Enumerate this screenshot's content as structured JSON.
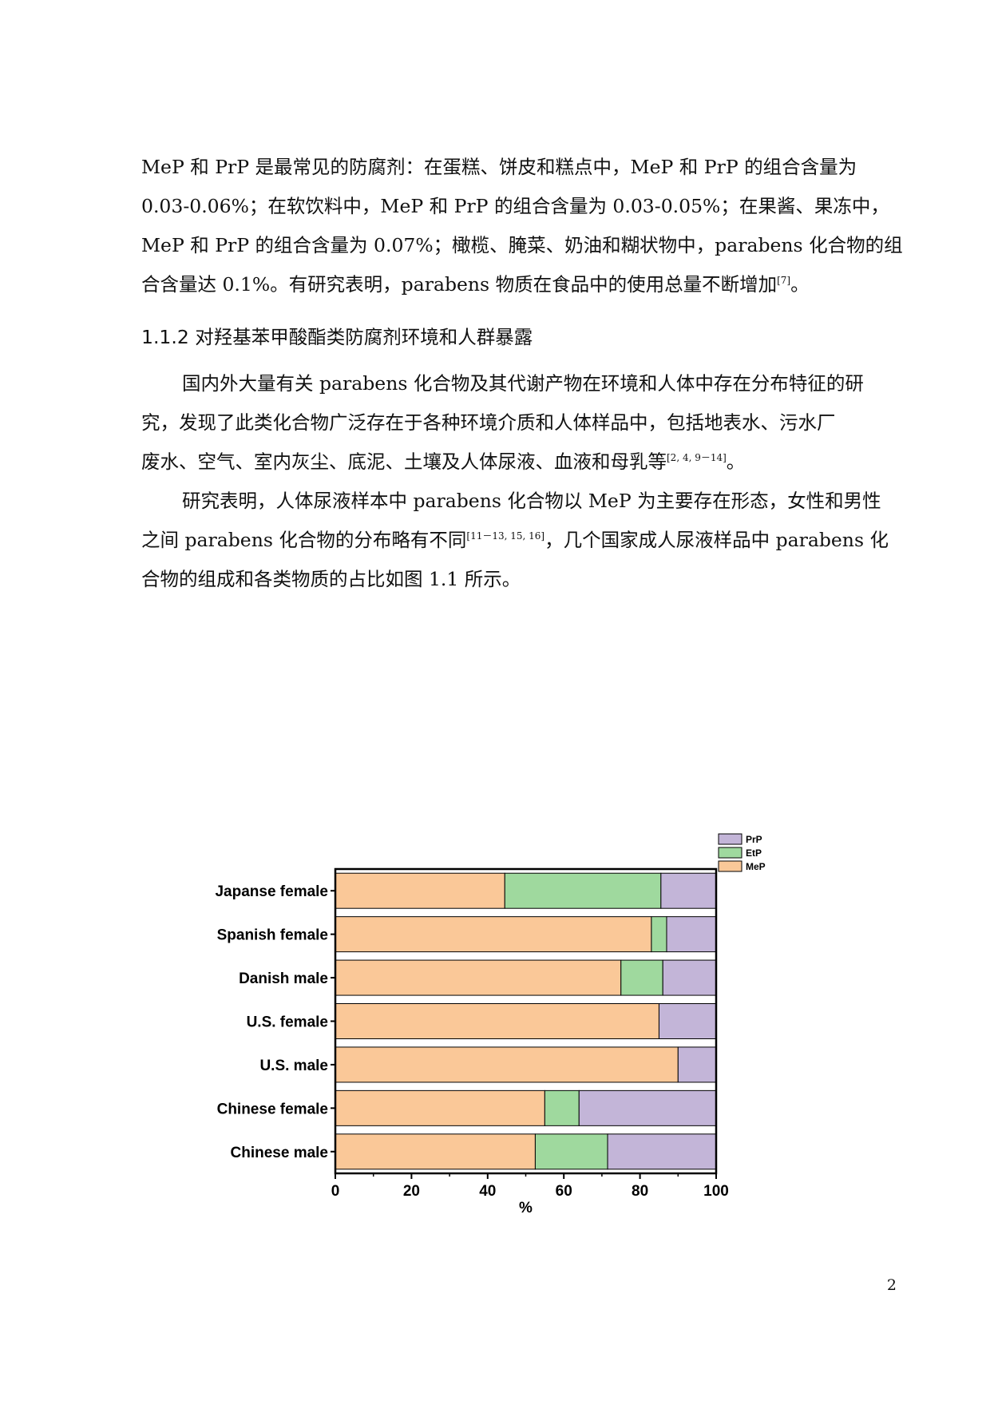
{
  "paragraphs": [
    {
      "lines": [
        "MeP 和 PrP 是最常见的防腐剂：在蛋糕、饼皮和糕点中，MeP 和 PrP 的组合含量为",
        "0.03-0.06%；在软饮料中，MeP 和 PrP 的组合含量为 0.03-0.05%；在果酱、果冻中，",
        "MeP 和 PrP 的组合含量为 0.07%；橄榄、腌菜、奶油和糊状物中，parabens 化合物的组",
        "合含量达 0.1%。有研究表明，parabens 物质在食品中的使用总量不断增加"
      ],
      "cite": "[7]",
      "tail": "。"
    },
    {
      "lines": [
        "国内外大量有关 parabens 化合物及其代谢产物在环境和人体中存在分布特征的研",
        "究，发现了此类化合物广泛存在于各种环境介质和人体样品中，包括地表水、污水厂",
        "废水、空气、室内灰尘、底泥、土壤及人体尿液、血液和母乳等"
      ],
      "cite": "[2, 4, 9－14]",
      "tail": "。"
    },
    {
      "lines": [
        "研究表明，人体尿液样本中 parabens 化合物以 MeP 为主要存在形态，女性和男性",
        "之间 parabens 化合物的分布略有不同",
        "合物的组成和各类物质的占比如图 1.1 所示。"
      ],
      "cite": "[11－13, 15, 16]",
      "after_cite": "，几个国家成人尿液样品中 parabens 化"
    }
  ],
  "heading": "1.1.2 对羟基苯甲酸酯类防腐剂环境和人群暴露",
  "page_number": "2",
  "chart_data": {
    "type": "bar",
    "orientation": "horizontal",
    "stacked": true,
    "categories": [
      "Japanse female",
      "Spanish female",
      "Danish male",
      "U.S. female",
      "U.S. male",
      "Chinese female",
      "Chinese male"
    ],
    "series": [
      {
        "name": "MeP",
        "color": "#fac898",
        "values": [
          44.5,
          83,
          75,
          85,
          90,
          55,
          52.5
        ]
      },
      {
        "name": "EtP",
        "color": "#9fd99e",
        "values": [
          41,
          4,
          11,
          0,
          0,
          9,
          19
        ]
      },
      {
        "name": "PrP",
        "color": "#c3b5d8",
        "values": [
          14.5,
          13,
          14,
          15,
          10,
          36,
          28.5
        ]
      }
    ],
    "xlabel": "%",
    "xlim": [
      0,
      100
    ],
    "xticks": [
      "0",
      "20",
      "40",
      "60",
      "80",
      "100"
    ],
    "legend_order": [
      "PrP",
      "EtP",
      "MeP"
    ],
    "legend_position": "top-right"
  }
}
